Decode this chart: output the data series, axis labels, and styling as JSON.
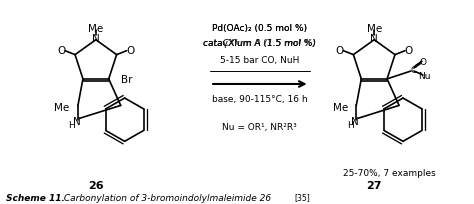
{
  "title": "",
  "bg_color": "#ffffff",
  "caption_bold": "Scheme 11.",
  "caption_text": " Carbonylation of 3-bromoindolylmaleimide 26",
  "caption_ref": "[35]",
  "compound_26": "26",
  "compound_27": "27",
  "yield_text": "25-70%, 7 examples",
  "reagents_line1": "Pd(OAc)₂ (0.5 mol %)",
  "reagents_line2": "cataγXlum A (1.5 mol %)",
  "reagents_line3": "5-15 bar CO, NuH",
  "reagents_line4": "base, 90-115°C, 16 h",
  "nu_label": "Nu = OR¹, NR²R³",
  "figsize": [
    4.74,
    2.05
  ],
  "dpi": 100
}
